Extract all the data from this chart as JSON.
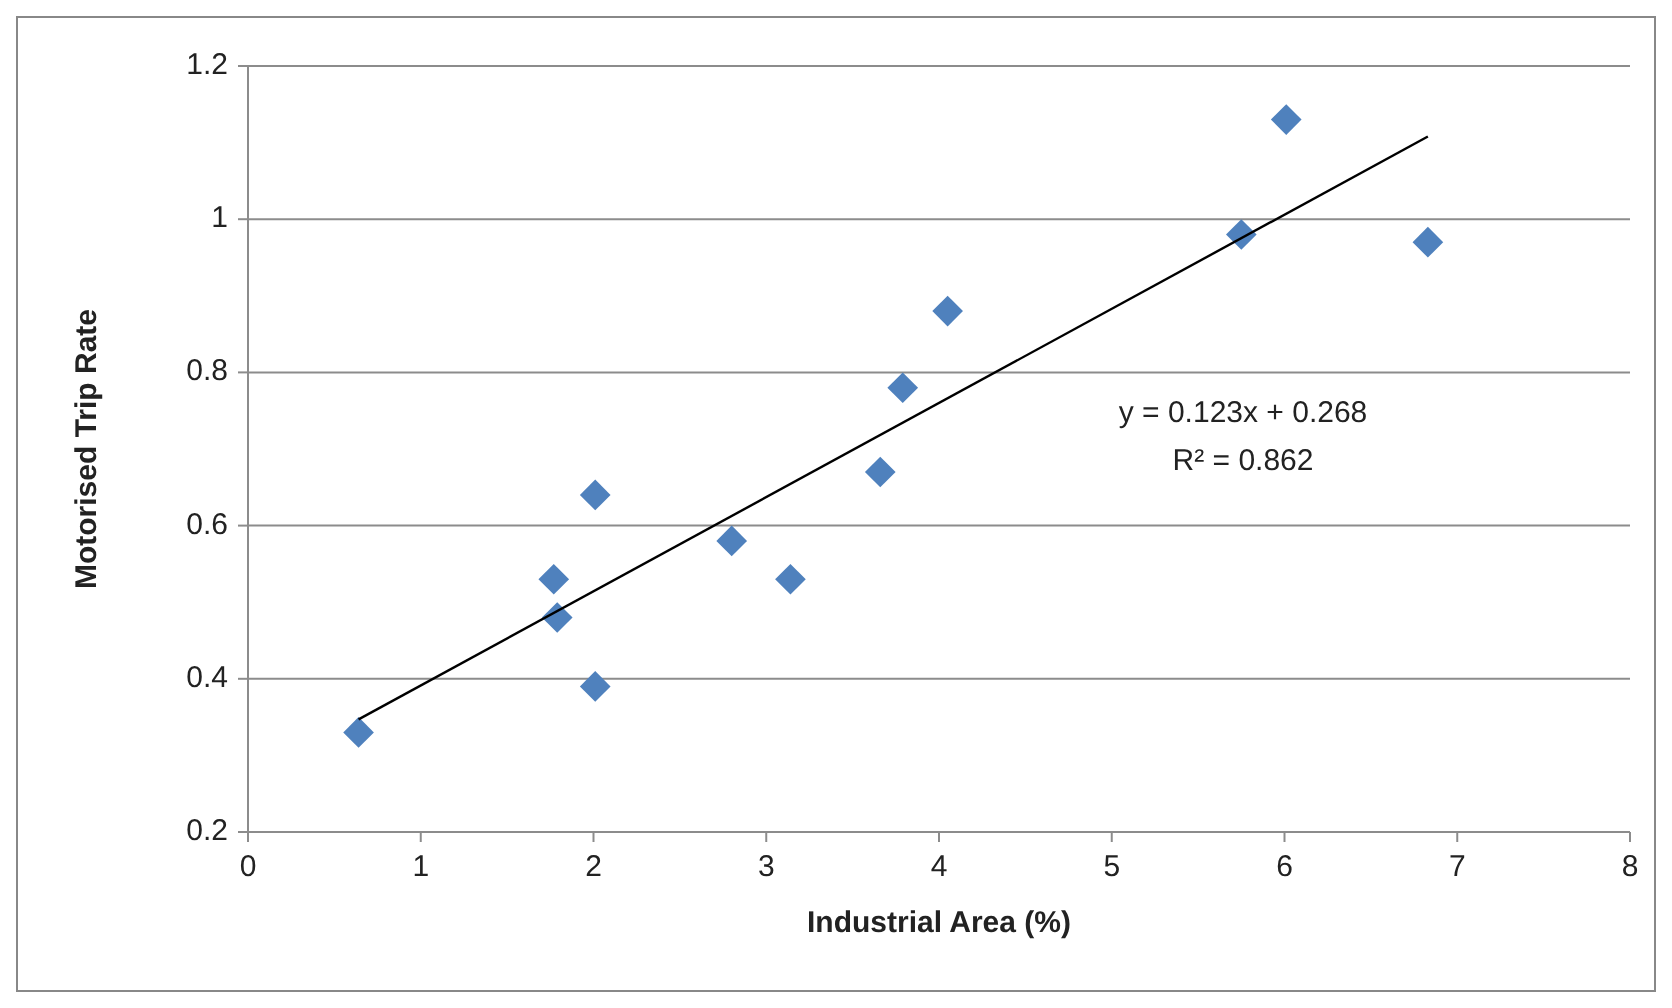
{
  "chart_data": {
    "type": "scatter",
    "xlabel": "Industrial Area (%)",
    "ylabel": "Motorised Trip Rate",
    "xlim": [
      0,
      8
    ],
    "xticks": [
      0,
      1,
      2,
      3,
      4,
      5,
      6,
      7,
      8
    ],
    "ylim": [
      0.2,
      1.2
    ],
    "yticks": [
      0.2,
      0.4,
      0.6,
      0.8,
      1,
      1.2
    ],
    "grid": "y",
    "marker": "diamond",
    "series": [
      {
        "color": "#4f81bd",
        "x": [
          0.64,
          1.77,
          1.79,
          2.01,
          2.01,
          2.8,
          3.14,
          3.66,
          3.79,
          4.05,
          5.75,
          6.01,
          6.83
        ],
        "values": [
          0.33,
          0.53,
          0.48,
          0.64,
          0.39,
          0.58,
          0.53,
          0.67,
          0.78,
          0.88,
          0.98,
          1.13,
          0.97
        ]
      },
      {
        "type": "line",
        "color": "#000000",
        "line_style": "solid",
        "marker": "none",
        "x": [
          0.64,
          6.83
        ],
        "values": [
          0.347,
          1.108
        ]
      }
    ],
    "annotations": [
      "y = 0.123x + 0.268",
      "R² = 0.862"
    ]
  }
}
